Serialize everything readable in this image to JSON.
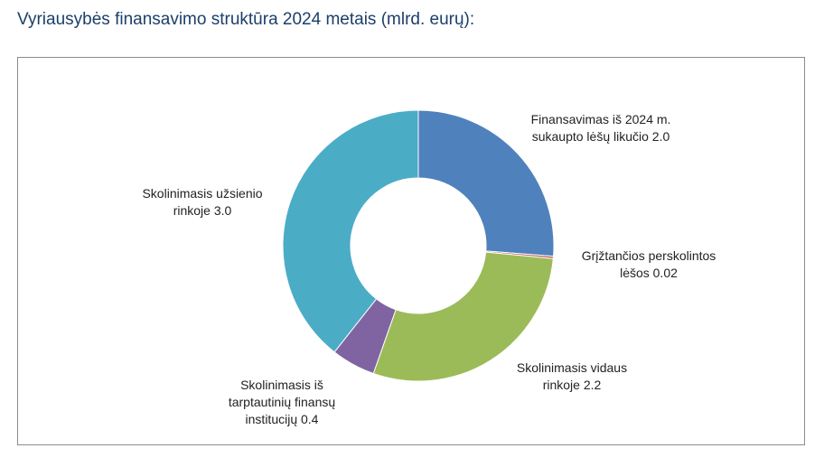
{
  "page": {
    "title": "Vyriausybės finansavimo struktūra 2024 metais (mlrd. eurų):"
  },
  "chart_data": {
    "type": "pie",
    "variant": "donut",
    "title": "",
    "legend": "none",
    "slices": [
      {
        "name": "Finansavimas iš 2024 m. sukaupto lėšų likučio",
        "value": 2.0,
        "label_lines": [
          "Finansavimas iš 2024 m.",
          "sukaupto lėšų likučio 2.0"
        ],
        "color": "#4f81bd"
      },
      {
        "name": "Grįžtančios perskolintos lėšos",
        "value": 0.02,
        "label_lines": [
          "Grįžtančios perskolintos",
          "lėšos 0.02"
        ],
        "color": "#c0504d"
      },
      {
        "name": "Skolinimasis vidaus rinkoje",
        "value": 2.2,
        "label_lines": [
          "Skolinimasis vidaus",
          "rinkoje 2.2"
        ],
        "color": "#9bbb59"
      },
      {
        "name": "Skolinimasis iš tarptautinių finansų institucijų",
        "value": 0.4,
        "label_lines": [
          "Skolinimasis iš",
          "tarptautinių finansų",
          "institucijų 0.4"
        ],
        "color": "#8064a2"
      },
      {
        "name": "Skolinimasis užsienio rinkoje",
        "value": 3.0,
        "label_lines": [
          "Skolinimasis užsienio",
          "rinkoje 3.0"
        ],
        "color": "#4bacc6"
      }
    ]
  }
}
